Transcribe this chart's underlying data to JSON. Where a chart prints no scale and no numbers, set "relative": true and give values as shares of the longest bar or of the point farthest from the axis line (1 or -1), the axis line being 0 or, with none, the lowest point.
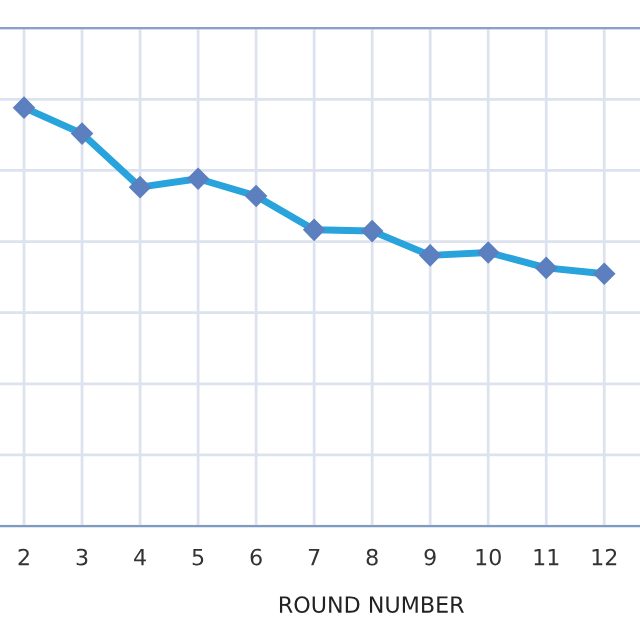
{
  "chart_data": {
    "type": "line",
    "xlabel": "ROUND NUMBER",
    "relative": true,
    "categories": [
      "2",
      "3",
      "4",
      "5",
      "6",
      "7",
      "8",
      "9",
      "10",
      "11",
      "12"
    ],
    "series": [
      {
        "color": "#29a3dc",
        "values": [
          1,
          0.938,
          0.81,
          0.83,
          0.789,
          0.708,
          0.705,
          0.647,
          0.654,
          0.617,
          0.603
        ]
      }
    ],
    "marker": "diamond",
    "line_style": "solid",
    "grid": true
  }
}
